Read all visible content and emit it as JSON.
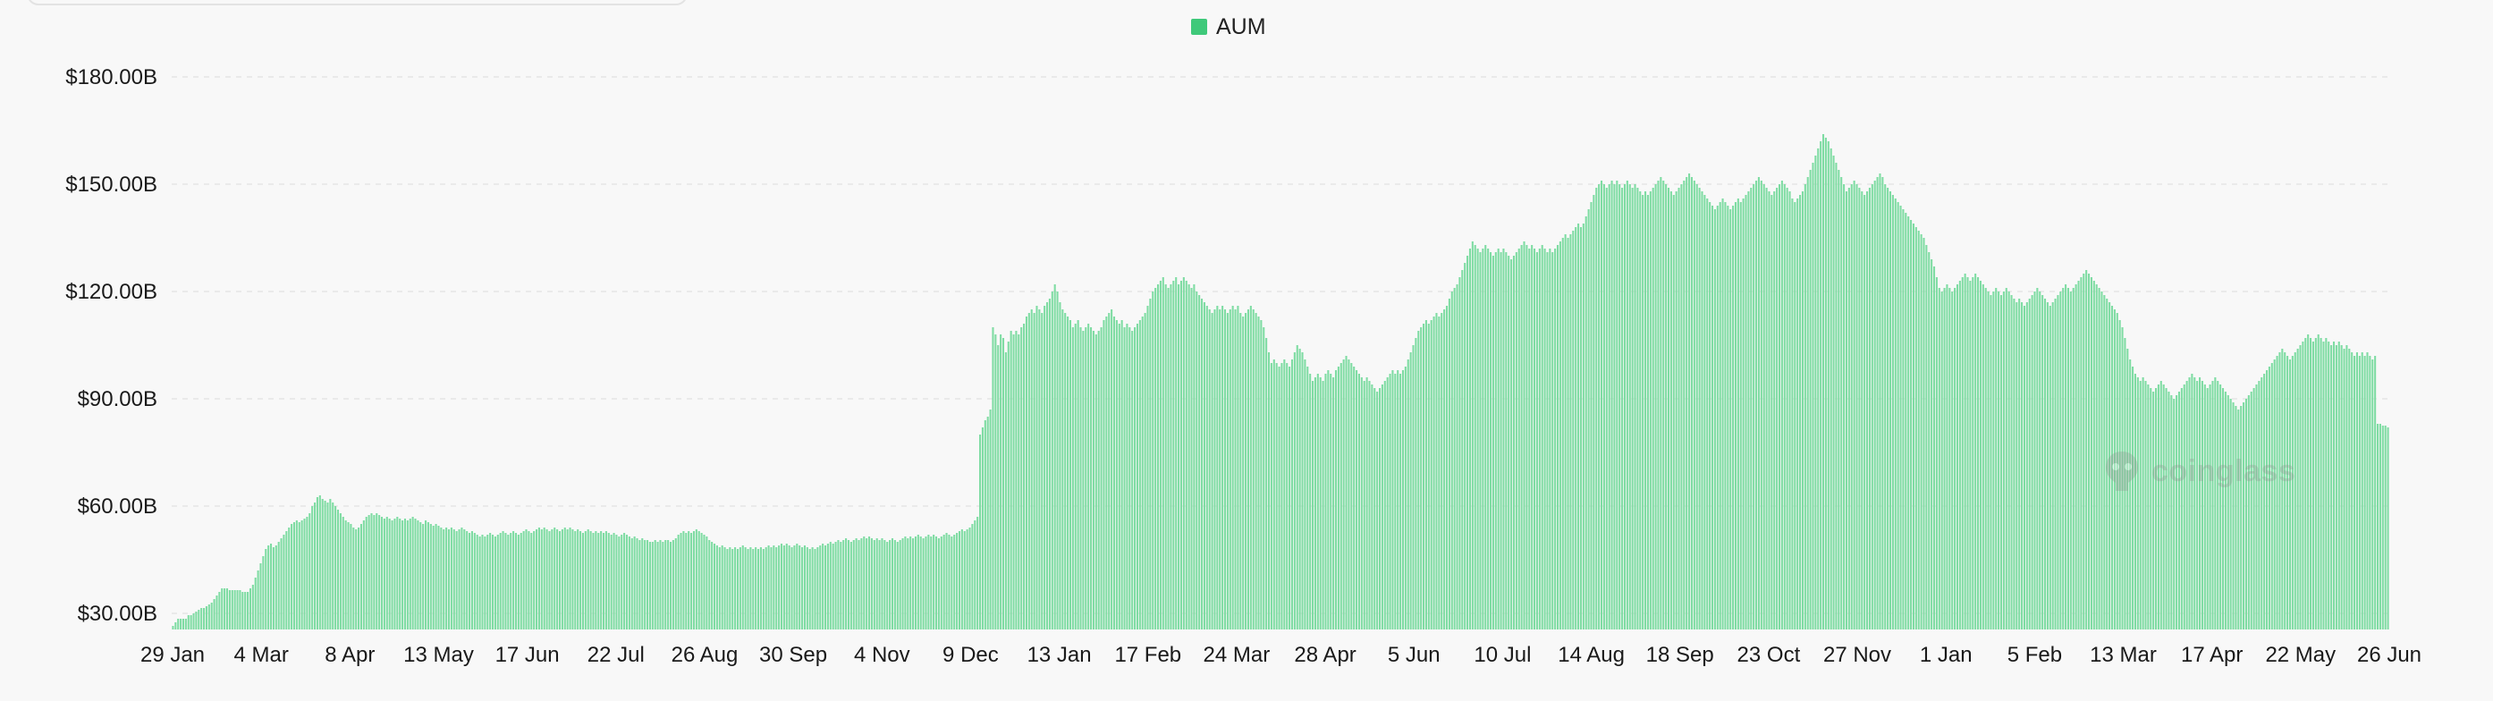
{
  "legend": {
    "label": "AUM",
    "color": "#3fc97a"
  },
  "watermark": {
    "text": "coinglass"
  },
  "chart_data": {
    "type": "bar",
    "title": "",
    "xlabel": "",
    "ylabel": "",
    "y_unit": "billion USD",
    "ylim": [
      25,
      188
    ],
    "y_ticks": [
      30,
      60,
      90,
      120,
      150,
      180
    ],
    "y_tick_labels": [
      "$30.00B",
      "$60.00B",
      "$90.00B",
      "$120.00B",
      "$150.00B",
      "$180.00B"
    ],
    "x_tick_labels": [
      "29 Jan",
      "4 Mar",
      "8 Apr",
      "13 May",
      "17 Jun",
      "22 Jul",
      "26 Aug",
      "30 Sep",
      "4 Nov",
      "9 Dec",
      "13 Jan",
      "17 Feb",
      "24 Mar",
      "28 Apr",
      "5 Jun",
      "10 Jul",
      "14 Aug",
      "18 Sep",
      "23 Oct",
      "27 Nov",
      "1 Jan",
      "5 Feb",
      "13 Mar",
      "17 Apr",
      "22 May",
      "26 Jun"
    ],
    "grid": true,
    "legend_position": "top-center",
    "bar_color": "#7fdca3",
    "series": [
      {
        "name": "AUM",
        "values": [
          26.5,
          27.5,
          28.5,
          28.5,
          28.5,
          28.5,
          29.5,
          29.5,
          30,
          30.5,
          31,
          31.5,
          31.5,
          32,
          32.5,
          33,
          34,
          35,
          36,
          37,
          37,
          37,
          36.5,
          36.5,
          36.5,
          36.5,
          36.5,
          36,
          36,
          36,
          37,
          38,
          40,
          42,
          44,
          46,
          48,
          49,
          49.5,
          48.5,
          49,
          50,
          51,
          52,
          53,
          54,
          55,
          55.5,
          56,
          55.5,
          56,
          56.5,
          57,
          58,
          60,
          61,
          62.5,
          63,
          62,
          61.5,
          61,
          62,
          61,
          60,
          59,
          58,
          57,
          56,
          55.5,
          55,
          54,
          53.5,
          54,
          55,
          56,
          57,
          57.5,
          58,
          57.5,
          58,
          57.5,
          57,
          56.5,
          57,
          56.5,
          56,
          56.5,
          57,
          56.5,
          56,
          56.5,
          56,
          56.5,
          57,
          56.5,
          56,
          55.5,
          55,
          56,
          55.5,
          55,
          54.5,
          55,
          54.5,
          54,
          53.5,
          54,
          53.5,
          54,
          53.5,
          53,
          53.5,
          54,
          53.5,
          53,
          52.5,
          53,
          52.5,
          52,
          51.5,
          52,
          51.5,
          52,
          52.5,
          52,
          51.5,
          52,
          52.5,
          53,
          52.5,
          52,
          52.5,
          53,
          52.5,
          52,
          52.5,
          53,
          53.5,
          53,
          52.5,
          53,
          53.5,
          54,
          53.5,
          54,
          53.5,
          53,
          53.5,
          54,
          53.5,
          53,
          53.5,
          54,
          53.5,
          54,
          53.5,
          53,
          53.5,
          53,
          52.5,
          53,
          53.5,
          53,
          52.5,
          53,
          52.5,
          53,
          52.5,
          53,
          52.5,
          52,
          52.5,
          52,
          51.5,
          52,
          52.5,
          52,
          51.5,
          51,
          51.5,
          51,
          50.5,
          51,
          50.5,
          50.5,
          50,
          50,
          50.5,
          50,
          50.5,
          50,
          50.5,
          50.5,
          50,
          50.5,
          51,
          52,
          52.5,
          53,
          52.5,
          53,
          52.5,
          53,
          53.5,
          53,
          52.5,
          52,
          51.5,
          50.5,
          50,
          49.5,
          49,
          48.5,
          49,
          48.5,
          48,
          48.5,
          48,
          48.5,
          48,
          48.5,
          49,
          48.5,
          48,
          48.5,
          48,
          48.5,
          48,
          48.5,
          48,
          48.5,
          49,
          48.5,
          49,
          48.5,
          49,
          49.5,
          49,
          49.5,
          49,
          48.5,
          49,
          49.5,
          49,
          48.5,
          49,
          48.5,
          48,
          48.5,
          48,
          48.5,
          49,
          49.5,
          49,
          49.5,
          50,
          49.5,
          50,
          50.5,
          50,
          50.5,
          51,
          50.5,
          50,
          50.5,
          51,
          50.5,
          51,
          51.5,
          51,
          51.5,
          51,
          50.5,
          51,
          50.5,
          51,
          50.5,
          50,
          50.5,
          51,
          50.5,
          50,
          50.5,
          51,
          51.5,
          51,
          51.5,
          51,
          51.5,
          52,
          51.5,
          51,
          51.5,
          52,
          51.5,
          52,
          51.5,
          51,
          51.5,
          52,
          52.5,
          52,
          51.5,
          52,
          52.5,
          53,
          53.5,
          53,
          53.5,
          54,
          55,
          56,
          57,
          80,
          82,
          84,
          85,
          87,
          110,
          108,
          105,
          108,
          107,
          103,
          106,
          109,
          108,
          109,
          108,
          110,
          111,
          113,
          114,
          115,
          114,
          116,
          115,
          114,
          116,
          117,
          118,
          120,
          122,
          120,
          117,
          115,
          114,
          113,
          112,
          110,
          111,
          112,
          110,
          109,
          110,
          111,
          110,
          109,
          108,
          109,
          110,
          112,
          113,
          114,
          115,
          113,
          112,
          111,
          112,
          110,
          111,
          110,
          109,
          110,
          111,
          112,
          113,
          114,
          116,
          118,
          120,
          121,
          122,
          123,
          124,
          122,
          121,
          122,
          123,
          124,
          122,
          123,
          124,
          123,
          122,
          121,
          122,
          120,
          119,
          118,
          117,
          116,
          115,
          114,
          115,
          116,
          115,
          116,
          115,
          114,
          115,
          116,
          115,
          116,
          114,
          113,
          114,
          115,
          116,
          115,
          114,
          113,
          112,
          110,
          107,
          103,
          100,
          101,
          100,
          99,
          100,
          101,
          100,
          99,
          101,
          103,
          105,
          104,
          103,
          101,
          99,
          97,
          95,
          96,
          97,
          96,
          95,
          97,
          98,
          97,
          96,
          98,
          99,
          100,
          101,
          102,
          101,
          100,
          99,
          98,
          97,
          96,
          95,
          96,
          95,
          94,
          93,
          92,
          93,
          94,
          95,
          96,
          97,
          98,
          97,
          98,
          97,
          98,
          99,
          101,
          103,
          105,
          107,
          109,
          110,
          111,
          112,
          111,
          112,
          113,
          114,
          113,
          114,
          115,
          116,
          118,
          120,
          121,
          122,
          124,
          126,
          128,
          130,
          132,
          134,
          133,
          132,
          131,
          132,
          133,
          132,
          131,
          130,
          131,
          132,
          131,
          132,
          131,
          130,
          129,
          130,
          131,
          132,
          133,
          134,
          133,
          132,
          133,
          132,
          131,
          132,
          133,
          132,
          131,
          132,
          131,
          132,
          133,
          134,
          135,
          136,
          135,
          136,
          137,
          138,
          139,
          138,
          139,
          141,
          143,
          145,
          147,
          149,
          150,
          151,
          150,
          149,
          150,
          151,
          150,
          151,
          150,
          149,
          150,
          151,
          150,
          149,
          150,
          149,
          148,
          147,
          148,
          147,
          148,
          149,
          150,
          151,
          152,
          151,
          150,
          149,
          148,
          147,
          148,
          149,
          150,
          151,
          152,
          153,
          152,
          151,
          150,
          149,
          148,
          147,
          146,
          145,
          144,
          143,
          144,
          145,
          146,
          145,
          144,
          143,
          144,
          145,
          146,
          145,
          146,
          147,
          148,
          149,
          150,
          151,
          152,
          151,
          150,
          149,
          148,
          147,
          148,
          149,
          150,
          151,
          150,
          149,
          148,
          146,
          145,
          146,
          147,
          148,
          150,
          152,
          154,
          156,
          158,
          160,
          162,
          164,
          163,
          162,
          160,
          158,
          156,
          154,
          152,
          150,
          148,
          149,
          150,
          151,
          150,
          149,
          148,
          147,
          148,
          149,
          150,
          151,
          152,
          153,
          152,
          150,
          149,
          148,
          147,
          146,
          145,
          144,
          143,
          142,
          141,
          140,
          139,
          138,
          137,
          136,
          135,
          133,
          131,
          129,
          127,
          124,
          121,
          120,
          121,
          122,
          121,
          120,
          121,
          122,
          123,
          124,
          125,
          124,
          123,
          124,
          125,
          124,
          123,
          122,
          121,
          120,
          119,
          120,
          121,
          120,
          119,
          120,
          121,
          120,
          119,
          118,
          117,
          118,
          117,
          116,
          117,
          118,
          119,
          120,
          121,
          120,
          119,
          118,
          117,
          116,
          117,
          118,
          119,
          120,
          121,
          122,
          121,
          120,
          121,
          122,
          123,
          124,
          125,
          126,
          125,
          124,
          123,
          122,
          121,
          120,
          119,
          118,
          117,
          116,
          115,
          114,
          112,
          110,
          107,
          104,
          101,
          99,
          97,
          96,
          95,
          96,
          95,
          94,
          93,
          92,
          93,
          94,
          95,
          94,
          93,
          92,
          91,
          90,
          91,
          92,
          93,
          94,
          95,
          96,
          97,
          96,
          95,
          96,
          95,
          94,
          93,
          94,
          95,
          96,
          95,
          94,
          93,
          92,
          91,
          90,
          89,
          88,
          87,
          88,
          89,
          90,
          91,
          92,
          93,
          94,
          95,
          96,
          97,
          98,
          99,
          100,
          101,
          102,
          103,
          104,
          103,
          102,
          101,
          102,
          103,
          104,
          105,
          106,
          107,
          108,
          107,
          106,
          107,
          108,
          107,
          106,
          107,
          106,
          105,
          106,
          105,
          106,
          105,
          104,
          105,
          104,
          103,
          102,
          103,
          102,
          103,
          102,
          103,
          102,
          101,
          102,
          83,
          83,
          82.5,
          82.5,
          82
        ]
      }
    ]
  }
}
